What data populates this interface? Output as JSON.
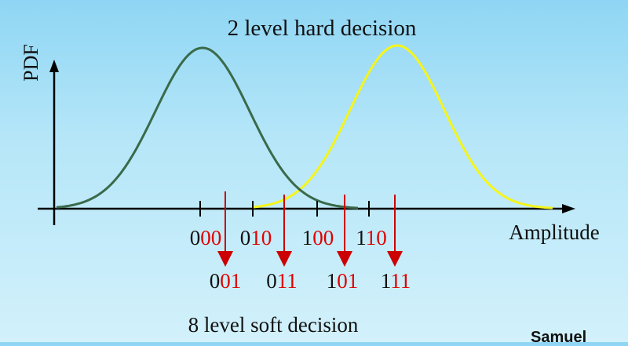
{
  "title": "2 level hard decision",
  "ylabel": "PDF",
  "xlabel": "Amplitude",
  "bottom_caption": "8 level soft decision",
  "corner_text": "Samuel",
  "colors": {
    "curve_left": "#3a6a4a",
    "curve_right": "#f5f51a",
    "axis": "#000000",
    "arrow": "#cc0000",
    "code_prefix": "#111111",
    "code_suffix": "#e00000"
  },
  "hard_codes": [
    {
      "prefix": "0",
      "suffix": "00"
    },
    {
      "prefix": "0",
      "suffix": "10"
    },
    {
      "prefix": "1",
      "suffix": "00"
    },
    {
      "prefix": "1",
      "suffix": "10"
    }
  ],
  "soft_codes": [
    {
      "prefix": "0",
      "suffix": "01"
    },
    {
      "prefix": "0",
      "suffix": "11"
    },
    {
      "prefix": "1",
      "suffix": "01"
    },
    {
      "prefix": "1",
      "suffix": "11"
    }
  ]
}
